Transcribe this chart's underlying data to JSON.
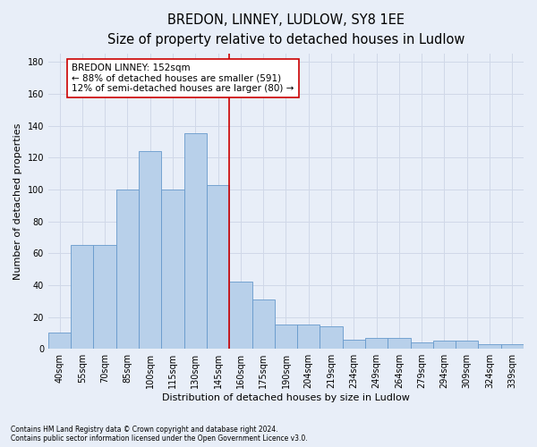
{
  "title": "BREDON, LINNEY, LUDLOW, SY8 1EE",
  "subtitle": "Size of property relative to detached houses in Ludlow",
  "xlabel": "Distribution of detached houses by size in Ludlow",
  "ylabel": "Number of detached properties",
  "categories": [
    "40sqm",
    "55sqm",
    "70sqm",
    "85sqm",
    "100sqm",
    "115sqm",
    "130sqm",
    "145sqm",
    "160sqm",
    "175sqm",
    "190sqm",
    "204sqm",
    "219sqm",
    "234sqm",
    "249sqm",
    "264sqm",
    "279sqm",
    "294sqm",
    "309sqm",
    "324sqm",
    "339sqm"
  ],
  "values": [
    10,
    65,
    65,
    100,
    124,
    100,
    135,
    103,
    42,
    31,
    15,
    15,
    14,
    6,
    7,
    7,
    4,
    5,
    5,
    3,
    3
  ],
  "bar_color": "#b8d0ea",
  "bar_edge_color": "#6699cc",
  "background_color": "#e8eef8",
  "grid_color": "#d0d8e8",
  "vline_x": 7.5,
  "vline_color": "#cc0000",
  "annotation_text": "BREDON LINNEY: 152sqm\n← 88% of detached houses are smaller (591)\n12% of semi-detached houses are larger (80) →",
  "annotation_box_color": "#ffffff",
  "annotation_box_edge": "#cc0000",
  "ylim": [
    0,
    185
  ],
  "yticks": [
    0,
    20,
    40,
    60,
    80,
    100,
    120,
    140,
    160,
    180
  ],
  "footnote1": "Contains HM Land Registry data © Crown copyright and database right 2024.",
  "footnote2": "Contains public sector information licensed under the Open Government Licence v3.0.",
  "title_fontsize": 10.5,
  "subtitle_fontsize": 9,
  "label_fontsize": 8,
  "tick_fontsize": 7,
  "annot_fontsize": 7.5
}
